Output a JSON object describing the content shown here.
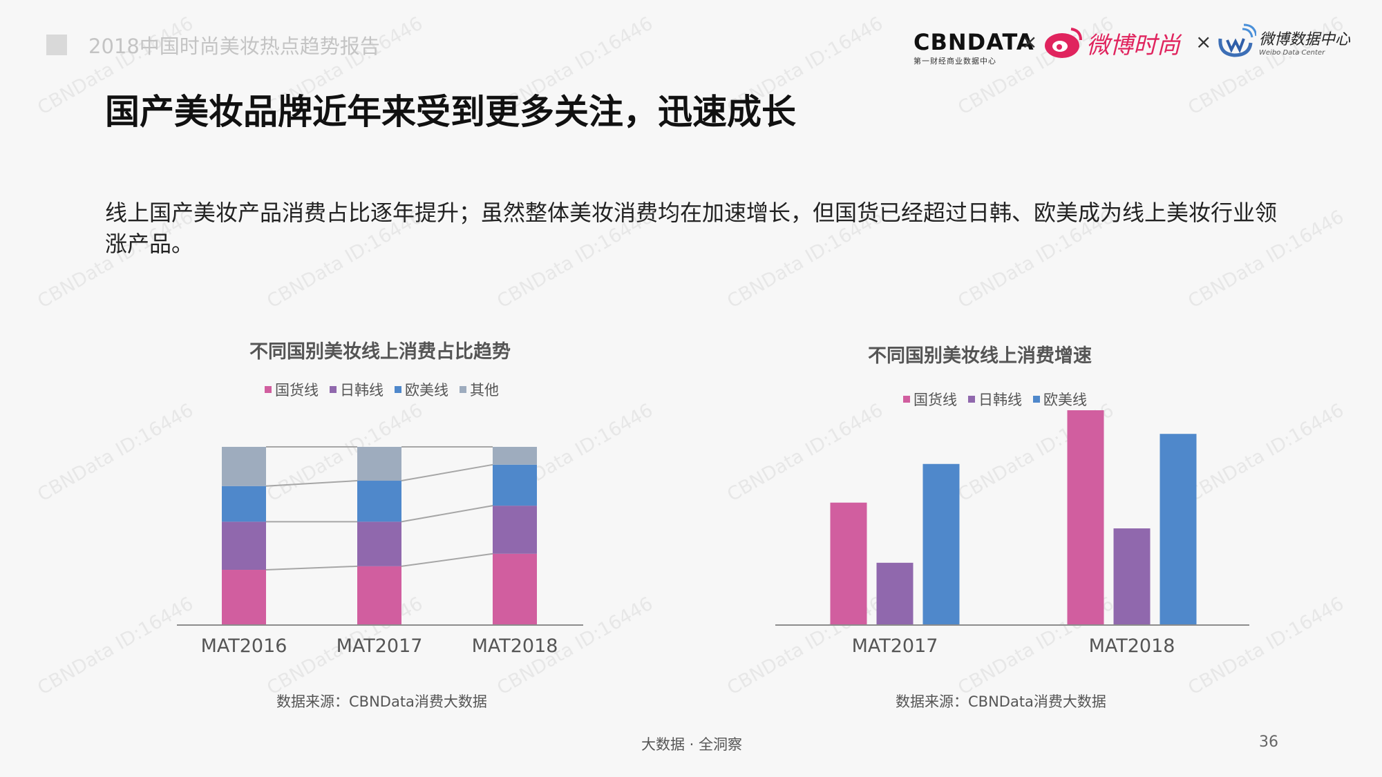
{
  "header": {
    "report_title": "2018中国时尚美妆热点趋势报告",
    "logo_cbn_name": "CBNDATA",
    "logo_cbn_sub": "第一财经商业数据中心",
    "times_symbol": "×",
    "logo_weibo": "微博时尚",
    "logo_wdc_cn": "微博数据中心",
    "logo_wdc_en": "Weibo Data Center"
  },
  "main": {
    "title": "国产美妆品牌近年来受到更多关注，迅速成长",
    "description": "线上国产美妆产品消费占比逐年提升；虽然整体美妆消费均在加速增长，但国货已经超过日韩、欧美成为线上美妆行业领涨产品。"
  },
  "colors": {
    "domestic": "#d15e9f",
    "japan_korea": "#9068ad",
    "western": "#4f88cb",
    "other": "#9eacbe",
    "watermark": "#bbbbbb"
  },
  "watermark_text": "CBNData ID:16446",
  "chart_data": [
    {
      "type": "bar",
      "stacked": true,
      "title": "不同国别美妆线上消费占比趋势",
      "categories": [
        "MAT2016",
        "MAT2017",
        "MAT2018"
      ],
      "series": [
        {
          "name": "国货线",
          "values": [
            31,
            33,
            40
          ]
        },
        {
          "name": "日韩线",
          "values": [
            27,
            25,
            27
          ]
        },
        {
          "name": "欧美线",
          "values": [
            20,
            23,
            23
          ]
        },
        {
          "name": "其他",
          "values": [
            22,
            19,
            10
          ]
        }
      ],
      "ylim": [
        0,
        100
      ],
      "legend_position": "top",
      "connector_lines": true,
      "grid": false,
      "source": "数据来源：CBNData消费大数据"
    },
    {
      "type": "bar",
      "title": "不同国别美妆线上消费增速",
      "categories": [
        "MAT2017",
        "MAT2018"
      ],
      "series": [
        {
          "name": "国货线",
          "values": [
            57,
            100
          ]
        },
        {
          "name": "日韩线",
          "values": [
            29,
            45
          ]
        },
        {
          "name": "欧美线",
          "values": [
            75,
            89
          ]
        }
      ],
      "ylim": [
        0,
        100
      ],
      "legend_position": "top",
      "grid": false,
      "source": "数据来源：CBNData消费大数据"
    }
  ],
  "footer": {
    "slogan": "大数据 · 全洞察",
    "page_number": "36"
  }
}
